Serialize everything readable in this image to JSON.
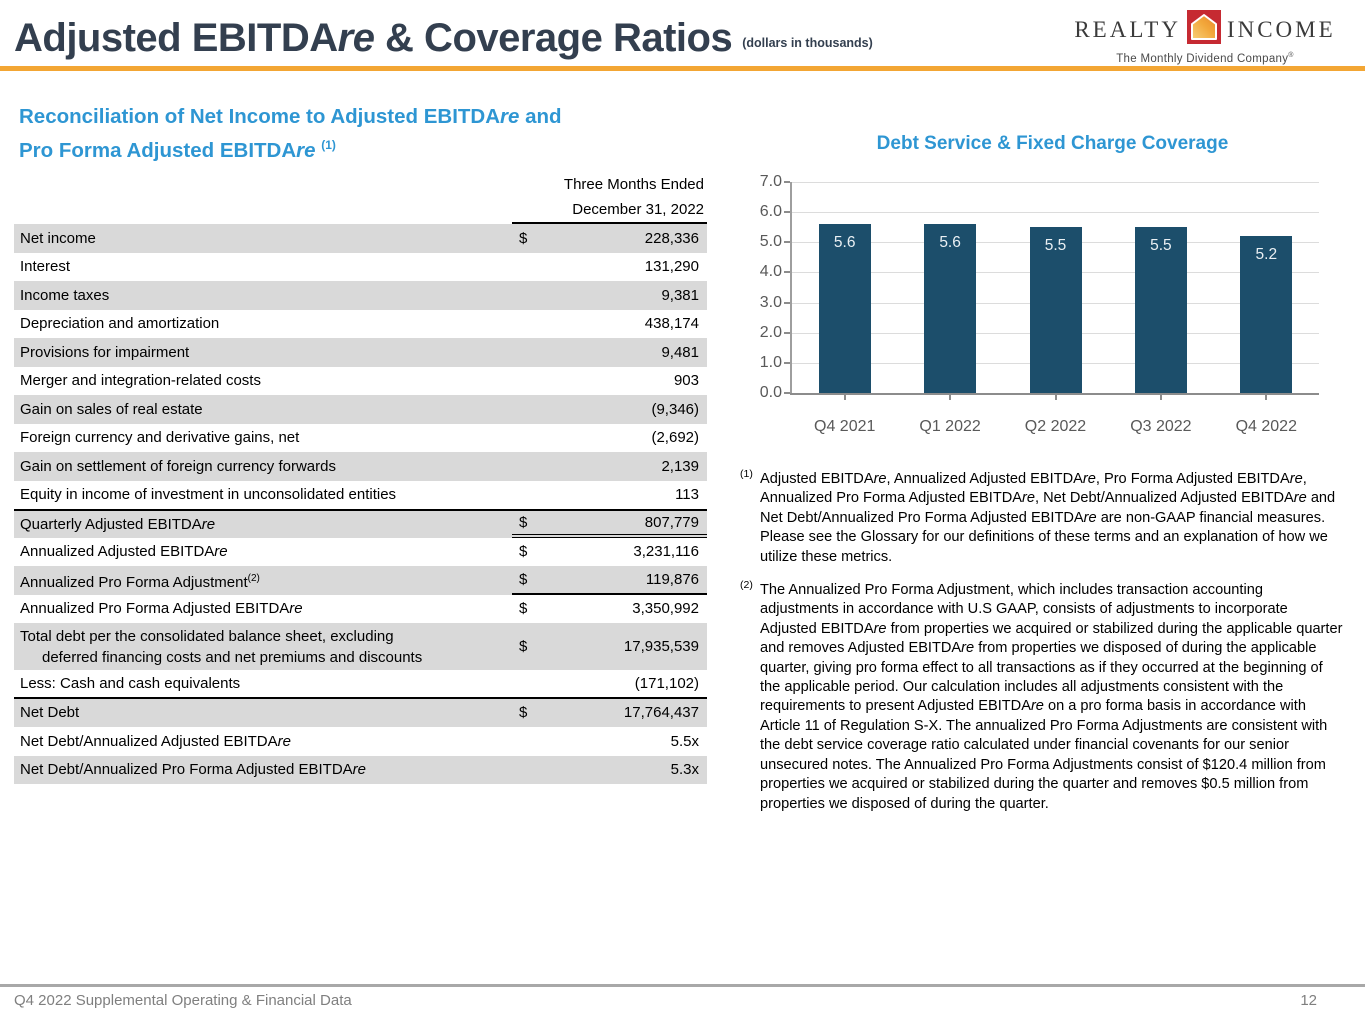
{
  "header": {
    "title": "Adjusted EBITDAre & Coverage Ratios",
    "title_suffix": "(dollars in thousands)",
    "logo": {
      "word1": "REALTY",
      "word2": "INCOME",
      "house_icon": "house-icon",
      "tagline": "The Monthly Dividend Company",
      "reg": "®"
    }
  },
  "colors": {
    "accent_orange": "#F3A634",
    "heading_blue": "#2E96D3",
    "title_dark": "#333F4F",
    "bar_navy": "#1C4E6B",
    "row_shade": "#D9D9D9",
    "axis_gray": "#8C8C8C",
    "tick_text_gray": "#595959",
    "footer_gray": "#7F7F7F"
  },
  "left_section": {
    "heading_line1": "Reconciliation of Net Income to Adjusted EBITDAre and",
    "heading_line2": "Pro Forma Adjusted EBITDAre [sup](1)[/sup]"
  },
  "table": {
    "header_line1": "Three Months Ended",
    "header_line2": "December 31, 2022",
    "rows": [
      {
        "label": "Net income",
        "dollar": "$",
        "value": "228,336",
        "shaded": true
      },
      {
        "label": "Interest",
        "value": "131,290"
      },
      {
        "label": "Income taxes",
        "value": "9,381",
        "shaded": true
      },
      {
        "label": "Depreciation and amortization",
        "value": "438,174"
      },
      {
        "label": "Provisions for impairment",
        "value": "9,481",
        "shaded": true
      },
      {
        "label": "Merger and integration-related costs",
        "value": "903"
      },
      {
        "label": "Gain on sales of real estate",
        "value": "(9,346)",
        "shaded": true
      },
      {
        "label": "Foreign currency and derivative gains, net",
        "value": "(2,692)"
      },
      {
        "label": "Gain on settlement of foreign currency forwards",
        "value": "2,139",
        "shaded": true
      },
      {
        "label": "Equity in income of investment in unconsolidated entities",
        "value": "113"
      },
      {
        "label": "Quarterly Adjusted EBITDAre",
        "dollar": "$",
        "value": "807,779",
        "shaded": true,
        "rule_top": true,
        "amount_rule": "double"
      },
      {
        "label": "Annualized Adjusted EBITDAre",
        "dollar": "$",
        "value": "3,231,116"
      },
      {
        "label": "Annualized Pro Forma Adjustment[sup](2)[/sup]",
        "dollar": "$",
        "value": "119,876",
        "shaded": true,
        "amount_rule": "single"
      },
      {
        "label": "Annualized Pro Forma Adjusted EBITDAre",
        "dollar": "$",
        "value": "3,350,992"
      },
      {
        "label": "Total debt per the consolidated balance sheet, excluding",
        "label2": "deferred financing costs and net premiums and discounts",
        "dollar": "$",
        "value": "17,935,539",
        "shaded": true
      },
      {
        "label": "Less: Cash and cash equivalents",
        "value": "(171,102)",
        "rule_bottom": true
      },
      {
        "label": "Net Debt",
        "dollar": "$",
        "value": "17,764,437",
        "shaded": true
      },
      {
        "label": "Net Debt/Annualized Adjusted EBITDAre",
        "value": "5.5x"
      },
      {
        "label": "Net Debt/Annualized Pro Forma Adjusted EBITDAre",
        "value": "5.3x",
        "shaded": true
      }
    ]
  },
  "chart_data": {
    "type": "bar",
    "title": "Debt Service & Fixed Charge Coverage",
    "categories": [
      "Q4 2021",
      "Q1 2022",
      "Q2 2022",
      "Q3 2022",
      "Q4 2022"
    ],
    "values": [
      5.6,
      5.6,
      5.5,
      5.5,
      5.2
    ],
    "bar_labels": [
      "5.6",
      "5.6",
      "5.5",
      "5.5",
      "5.2"
    ],
    "xlabel": "",
    "ylabel": "",
    "ylim": [
      0,
      7
    ],
    "ytick_step": 1,
    "yticks": [
      "0.0",
      "1.0",
      "2.0",
      "3.0",
      "4.0",
      "5.0",
      "6.0",
      "7.0"
    ],
    "grid": true,
    "legend": "none",
    "bar_color": "#1C4E6B",
    "bar_label_color": "#EAF0F4"
  },
  "footnotes": [
    {
      "marker": "(1)",
      "text": "Adjusted EBITDAre, Annualized Adjusted EBITDAre, Pro Forma Adjusted EBITDAre, Annualized Pro Forma Adjusted EBITDAre, Net Debt/Annualized Adjusted EBITDAre and Net Debt/Annualized Pro Forma Adjusted EBITDAre are non-GAAP financial measures. Please see the Glossary for our definitions of these terms and an explanation of how we utilize these metrics."
    },
    {
      "marker": "(2)",
      "text": "The Annualized Pro Forma Adjustment, which includes transaction accounting adjustments in accordance with U.S GAAP, consists of adjustments to incorporate Adjusted EBITDAre from properties we acquired or stabilized during the applicable quarter and removes Adjusted EBITDAre from properties we disposed of during the applicable quarter, giving pro forma effect to all transactions as if they occurred at the beginning of the applicable period. Our calculation includes all adjustments consistent with the requirements to present Adjusted EBITDAre on a pro forma basis in accordance with Article 11 of Regulation S-X. The annualized Pro Forma Adjustments are consistent with the debt service coverage ratio calculated under financial covenants for our senior unsecured notes. The Annualized Pro Forma Adjustments consist of $120.4 million from properties we acquired or stabilized during the quarter and removes $0.5 million from properties we disposed of during the quarter."
    }
  ],
  "footer": {
    "left": "Q4 2022 Supplemental Operating & Financial Data",
    "page": "12"
  }
}
